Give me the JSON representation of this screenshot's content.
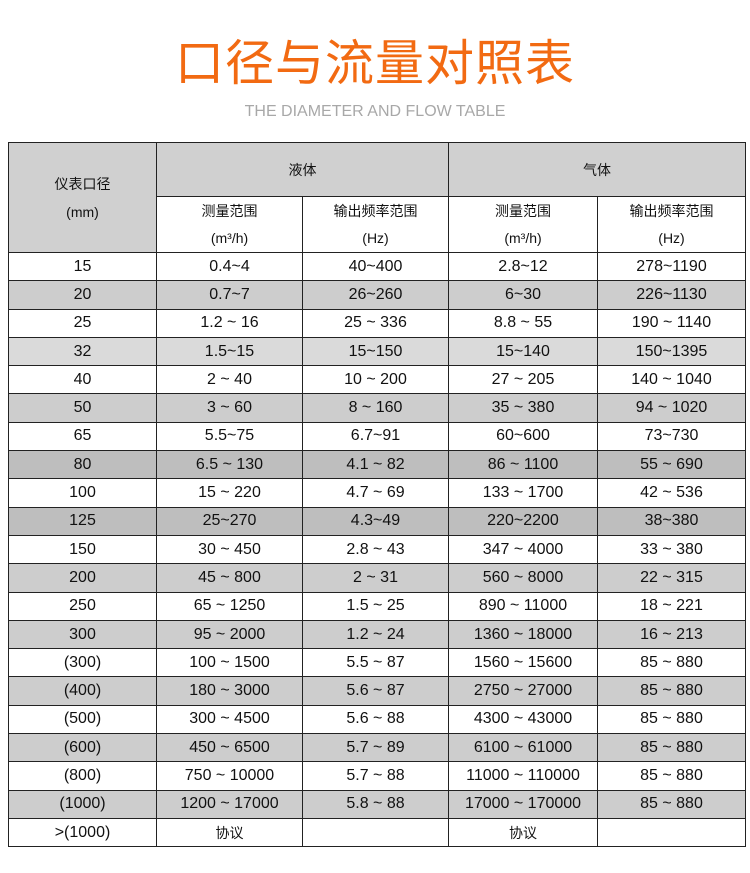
{
  "title": "口径与流量对照表",
  "subtitle": "THE DIAMETER AND FLOW TABLE",
  "colors": {
    "title": "#f26a12",
    "subtitle": "#a8a8a8",
    "header_bg": "#d0d0d0",
    "stripe_bg": "#cdcdcd"
  },
  "table": {
    "diameter_header": "仪表口径",
    "diameter_unit": "(mm)",
    "liquid_header": "液体",
    "gas_header": "气体",
    "sub_headers": [
      {
        "label": "测量范围",
        "unit": "(m³/h)"
      },
      {
        "label": "输出频率范围",
        "unit": "(Hz)"
      },
      {
        "label": "测量范围",
        "unit": "(m³/h)"
      },
      {
        "label": "输出频率范围",
        "unit": "(Hz)"
      }
    ],
    "rows": [
      [
        "15",
        "0.4~4",
        "40~400",
        "2.8~12",
        "278~1190"
      ],
      [
        "20",
        "0.7~7",
        "26~260",
        "6~30",
        "226~1130"
      ],
      [
        "25",
        "1.2 ~ 16",
        "25 ~ 336",
        "8.8 ~ 55",
        "190 ~ 1140"
      ],
      [
        "32",
        "1.5~15",
        "15~150",
        "15~140",
        "150~1395"
      ],
      [
        "40",
        "2 ~ 40",
        "10 ~ 200",
        "27 ~ 205",
        "140 ~ 1040"
      ],
      [
        "50",
        "3 ~ 60",
        "8 ~ 160",
        "35 ~ 380",
        "94 ~ 1020"
      ],
      [
        "65",
        "5.5~75",
        "6.7~91",
        "60~600",
        "73~730"
      ],
      [
        "80",
        "6.5 ~ 130",
        "4.1 ~ 82",
        "86 ~ 1100",
        "55 ~ 690"
      ],
      [
        "100",
        "15 ~ 220",
        "4.7 ~ 69",
        "133 ~ 1700",
        "42 ~ 536"
      ],
      [
        "125",
        "25~270",
        "4.3~49",
        "220~2200",
        "38~380"
      ],
      [
        "150",
        "30 ~ 450",
        "2.8 ~ 43",
        "347 ~ 4000",
        "33 ~ 380"
      ],
      [
        "200",
        "45 ~ 800",
        "2 ~ 31",
        "560 ~ 8000",
        "22 ~ 315"
      ],
      [
        "250",
        "65 ~ 1250",
        "1.5 ~ 25",
        "890 ~ 11000",
        "18 ~ 221"
      ],
      [
        "300",
        "95 ~ 2000",
        "1.2 ~ 24",
        "1360 ~ 18000",
        "16 ~ 213"
      ],
      [
        "(300)",
        "100 ~ 1500",
        "5.5 ~ 87",
        "1560 ~ 15600",
        "85 ~ 880"
      ],
      [
        "(400)",
        "180 ~ 3000",
        "5.6 ~ 87",
        "2750 ~ 27000",
        "85 ~ 880"
      ],
      [
        "(500)",
        "300 ~ 4500",
        "5.6 ~ 88",
        "4300 ~ 43000",
        "85 ~ 880"
      ],
      [
        "(600)",
        "450 ~ 6500",
        "5.7 ~ 89",
        "6100 ~ 61000",
        "85 ~ 880"
      ],
      [
        "(800)",
        "750 ~ 10000",
        "5.7 ~ 88",
        "11000 ~ 110000",
        "85 ~ 880"
      ],
      [
        "(1000)",
        "1200 ~ 17000",
        "5.8 ~ 88",
        "17000 ~ 170000",
        "85 ~ 880"
      ],
      [
        ">(1000)",
        "协议",
        "",
        "协议",
        ""
      ]
    ]
  }
}
